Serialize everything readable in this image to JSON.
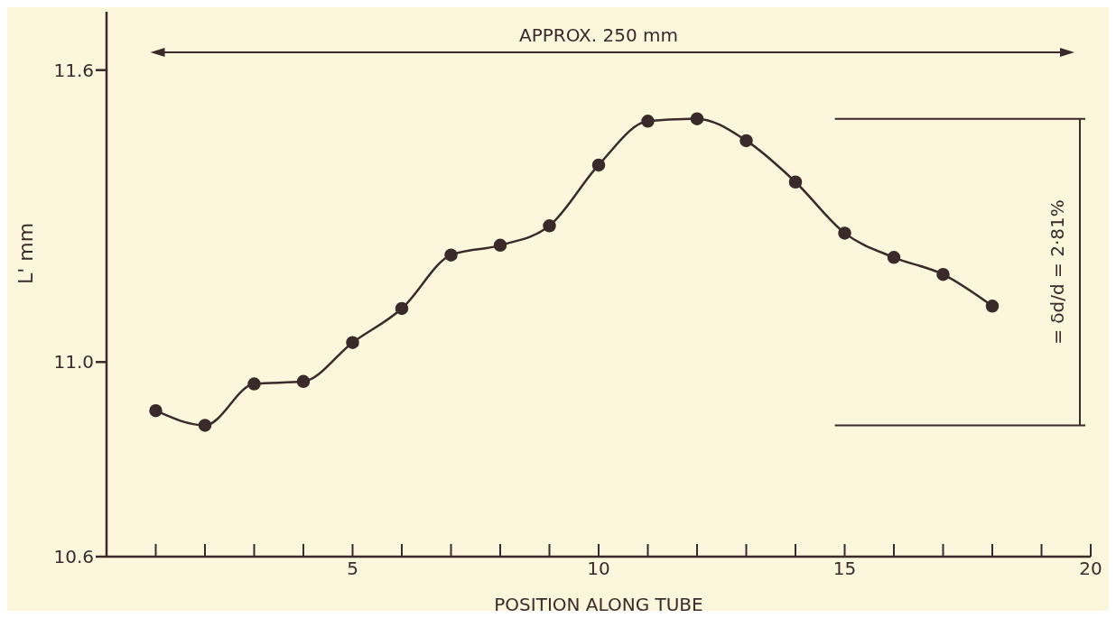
{
  "chart_data": {
    "type": "line",
    "xlabel": "POSITION  ALONG  TUBE",
    "ylabel": "L' mm",
    "x": [
      1,
      2,
      3,
      4,
      5,
      6,
      7,
      8,
      9,
      10,
      11,
      12,
      13,
      14,
      15,
      16,
      17,
      18
    ],
    "series": [
      {
        "color": "#3a2a2a",
        "values": [
          10.9,
          10.87,
          10.955,
          10.96,
          11.04,
          11.11,
          11.22,
          11.24,
          11.28,
          11.405,
          11.495,
          11.5,
          11.455,
          11.37,
          11.265,
          11.215,
          11.18,
          11.115
        ]
      }
    ],
    "xlim": [
      0,
      20
    ],
    "xticks": [
      {
        "value": 1,
        "label": null
      },
      {
        "value": 2,
        "label": null
      },
      {
        "value": 3,
        "label": null
      },
      {
        "value": 4,
        "label": null
      },
      5,
      {
        "value": 6,
        "label": null
      },
      {
        "value": 7,
        "label": null
      },
      {
        "value": 8,
        "label": null
      },
      {
        "value": 9,
        "label": null
      },
      10,
      {
        "value": 11,
        "label": null
      },
      {
        "value": 12,
        "label": null
      },
      {
        "value": 13,
        "label": null
      },
      {
        "value": 14,
        "label": null
      },
      15,
      {
        "value": 16,
        "label": null
      },
      {
        "value": 17,
        "label": null
      },
      {
        "value": 18,
        "label": null
      },
      {
        "value": 19,
        "label": null
      },
      20
    ],
    "ylim": [
      10.6,
      11.72
    ],
    "yticks": [
      10.6,
      {
        "value": 11.0,
        "label": "11.0"
      },
      11.6
    ],
    "marker": "circle",
    "grid": false,
    "annotations": [
      "APPROX. 250 mm",
      "= δd/d = 2·81%"
    ]
  }
}
